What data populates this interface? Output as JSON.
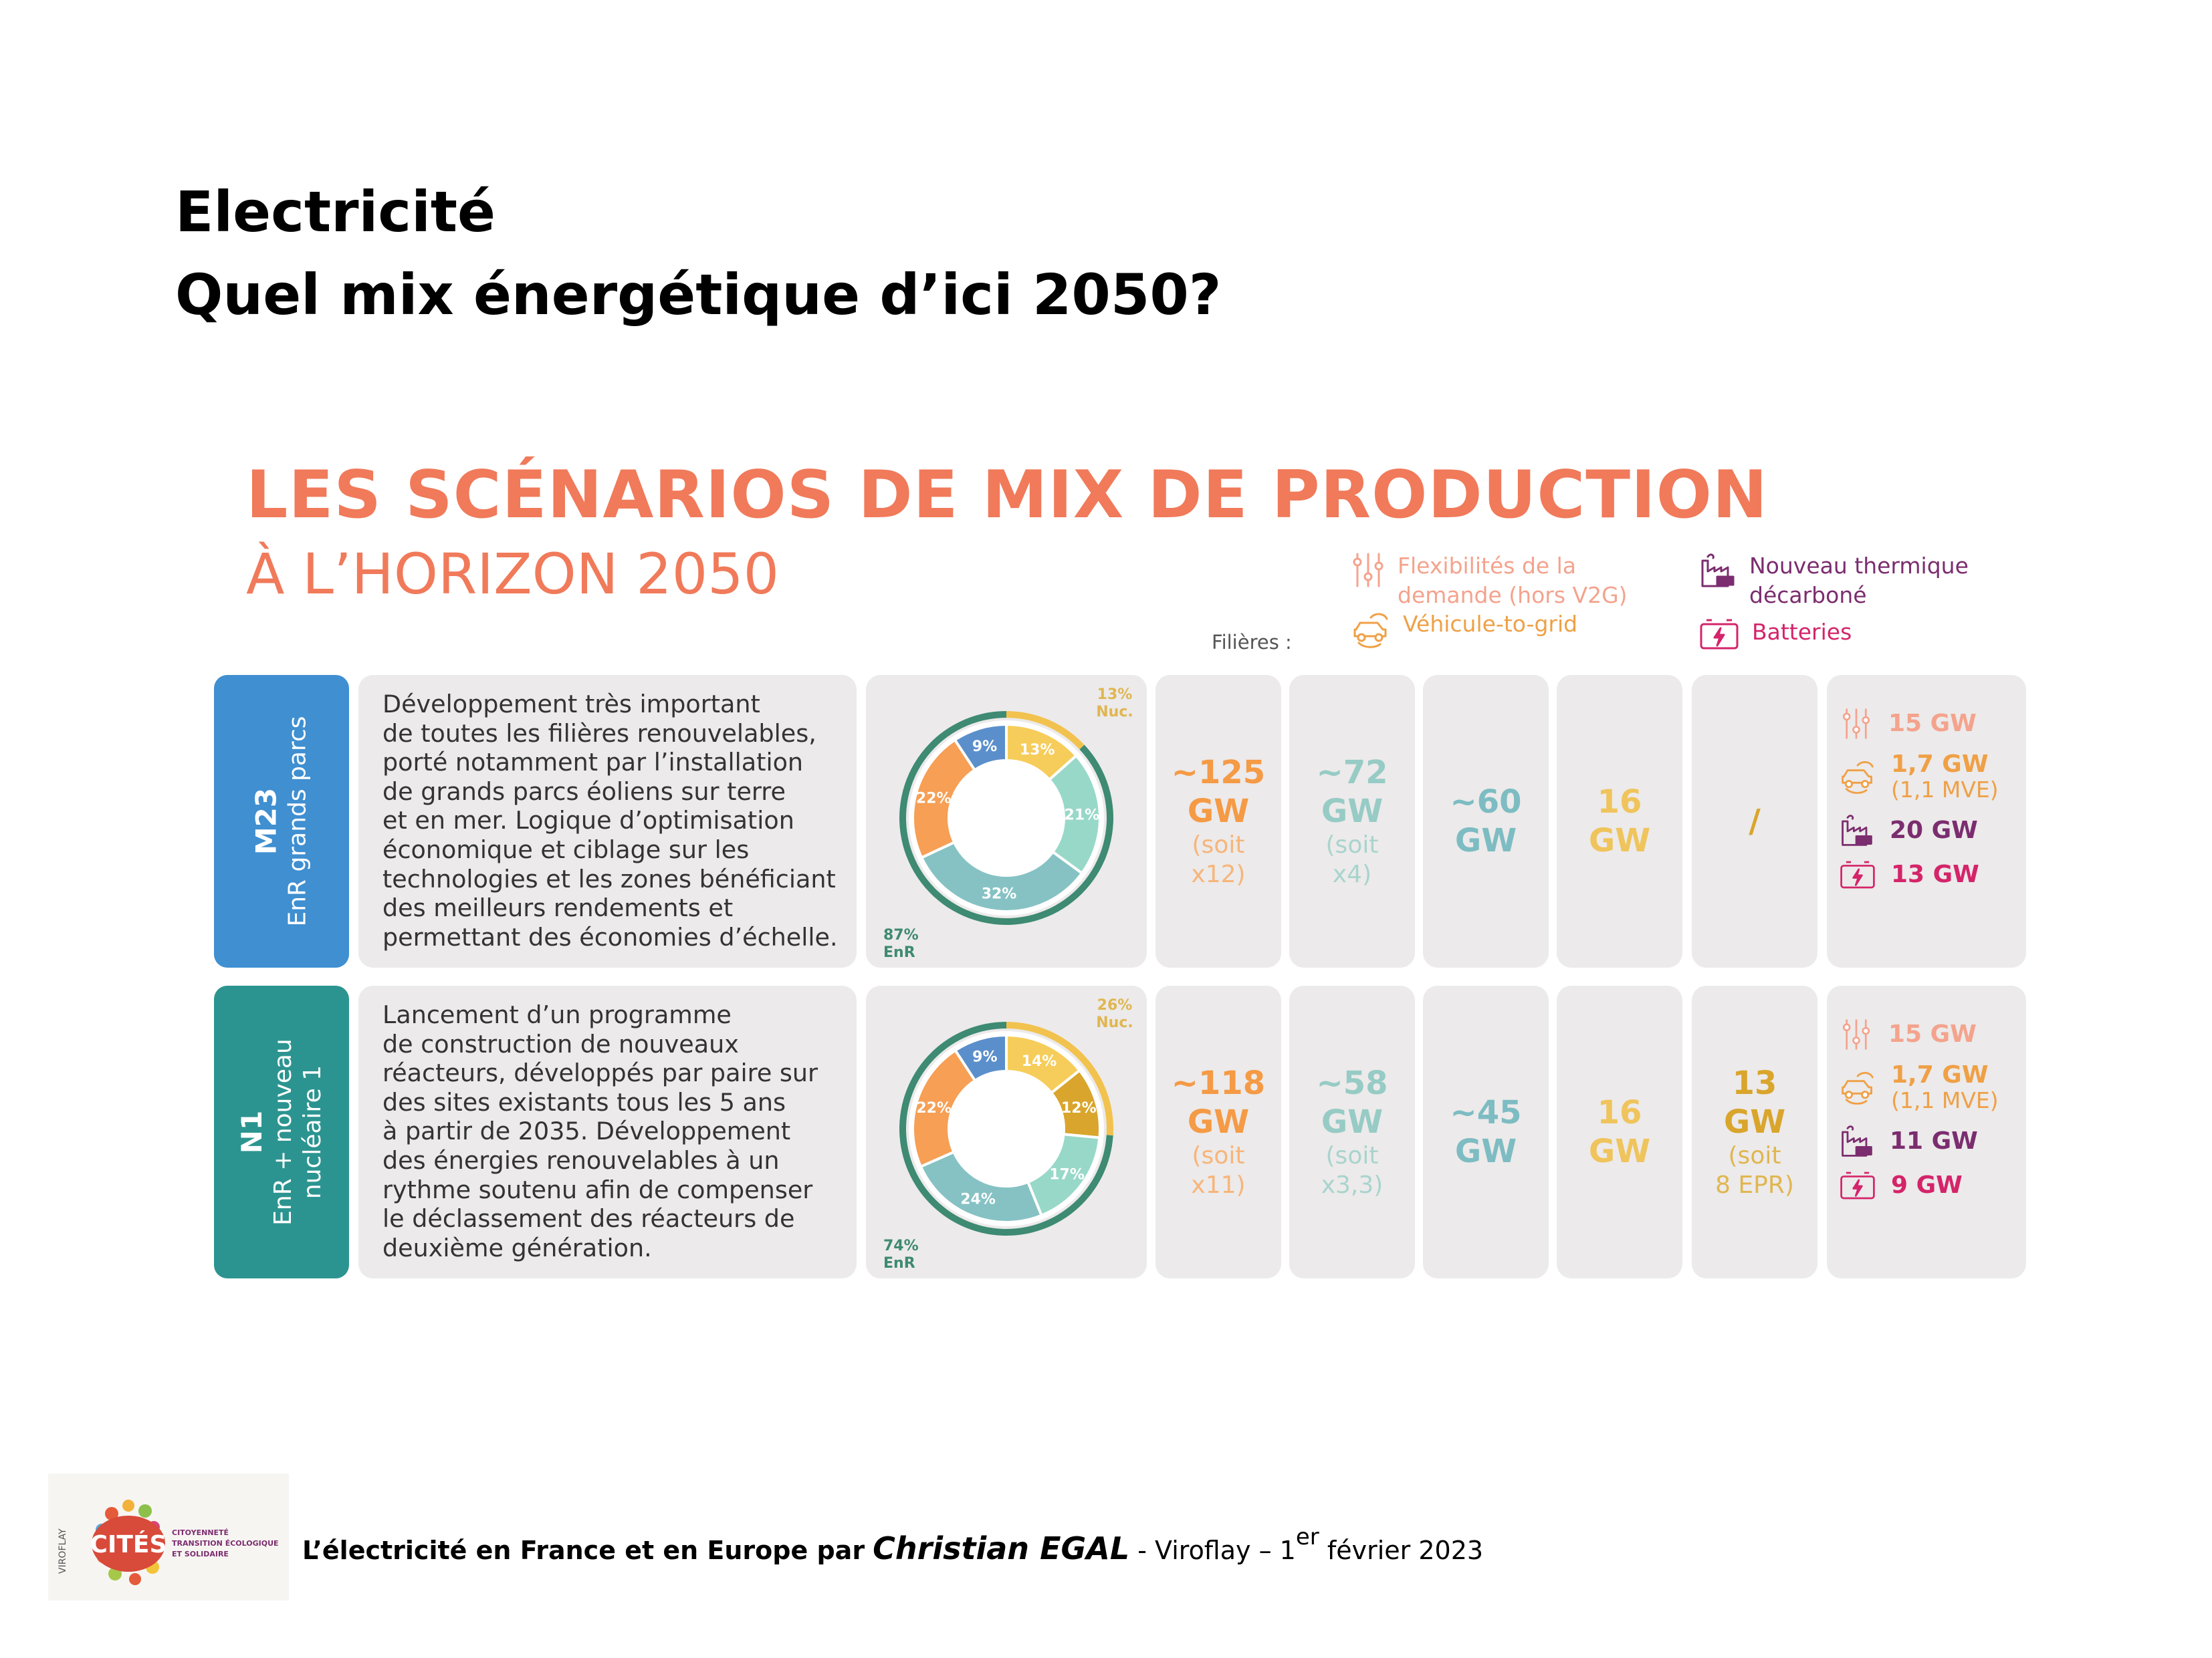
{
  "slide": {
    "title_line1": "Electricité",
    "title_line2": "Quel mix énergétique d’ici 2050?"
  },
  "infographic": {
    "heading_line1": "LES SCÉNARIOS DE MIX DE PRODUCTION",
    "heading_line2": "À L’HORIZON 2050",
    "filieres_label": "Filières :",
    "legend": {
      "flexibility": [
        "Flexibilités de la",
        "demande (hors V2G)"
      ],
      "v2g": "Véhicule-to-grid",
      "thermal": [
        "Nouveau thermique",
        "décarboné"
      ],
      "batteries": "Batteries",
      "icons": {
        "flexibility": "sliders-icon",
        "v2g": "car-plug-icon",
        "thermal": "factory-icon",
        "batteries": "battery-icon"
      }
    },
    "scenarios": [
      {
        "code": "M23",
        "subtitle_lines": [
          "EnR grands parcs"
        ],
        "description": [
          "Développement très important",
          "de toutes les filières renouvelables,",
          "porté notamment par l’installation",
          "de grands parcs éoliens sur terre",
          "et en mer. Logique d’optimisation",
          "économique et ciblage sur les",
          "technologies et les zones bénéficiant",
          "des meilleurs rendements et",
          "permettant des économies d’échelle."
        ],
        "donut": {
          "nuc_label": [
            "13%",
            "Nuc."
          ],
          "enr_label": [
            "87%",
            "EnR"
          ],
          "nuc_share": 0.13,
          "segments": [
            {
              "label": "13%",
              "value": 13,
              "color": "#f6cd5a"
            },
            {
              "label": "21%",
              "value": 21,
              "color": "#98d8c8"
            },
            {
              "label": "32%",
              "value": 32,
              "color": "#86c2c4"
            },
            {
              "label": "22%",
              "value": 22,
              "color": "#f69f55"
            },
            {
              "label": "9%",
              "value": 9,
              "color": "#5b8fcb"
            }
          ]
        },
        "pv": {
          "main": [
            "~125",
            "GW"
          ],
          "sub": [
            "(soit",
            "x12)"
          ]
        },
        "wind_onshore": {
          "main": [
            "~72",
            "GW"
          ],
          "sub": [
            "(soit",
            "x4)"
          ]
        },
        "wind_offshore": {
          "main": [
            "~60",
            "GW"
          ],
          "sub": []
        },
        "hydro": {
          "main": [
            "16",
            "GW"
          ],
          "sub": []
        },
        "nuclear": {
          "main": [
            "/"
          ],
          "sub": []
        },
        "flex": {
          "flexibility": "15 GW",
          "v2g": "1,7 GW",
          "v2g_sub": "(1,1 MVE)",
          "thermal": "20 GW",
          "batteries": "13 GW"
        }
      },
      {
        "code": "N1",
        "subtitle_lines": [
          "EnR + nouveau",
          "nucléaire 1"
        ],
        "description": [
          "Lancement d’un programme",
          "de construction de nouveaux",
          "réacteurs, développés par paire sur",
          "des sites existants tous les 5 ans",
          "à partir de 2035. Développement",
          "des énergies renouvelables à un",
          "rythme soutenu afin de compenser",
          "le déclassement des réacteurs de",
          "deuxième génération."
        ],
        "donut": {
          "nuc_label": [
            "26%",
            "Nuc."
          ],
          "enr_label": [
            "74%",
            "EnR"
          ],
          "nuc_share": 0.26,
          "segments": [
            {
              "label": "14%",
              "value": 14,
              "color": "#f6cd5a"
            },
            {
              "label": "12%",
              "value": 12,
              "color": "#d9a52c"
            },
            {
              "label": "17%",
              "value": 17,
              "color": "#98d8c8"
            },
            {
              "label": "24%",
              "value": 24,
              "color": "#86c2c4"
            },
            {
              "label": "22%",
              "value": 22,
              "color": "#f69f55"
            },
            {
              "label": "9%",
              "value": 9,
              "color": "#5b8fcb"
            }
          ]
        },
        "pv": {
          "main": [
            "~118",
            "GW"
          ],
          "sub": [
            "(soit",
            "x11)"
          ]
        },
        "wind_onshore": {
          "main": [
            "~58",
            "GW"
          ],
          "sub": [
            "(soit",
            "x3,3)"
          ]
        },
        "wind_offshore": {
          "main": [
            "~45",
            "GW"
          ],
          "sub": []
        },
        "hydro": {
          "main": [
            "16",
            "GW"
          ],
          "sub": []
        },
        "nuclear": {
          "main": [
            "13",
            "GW"
          ],
          "sub": [
            "(soit",
            "8 EPR)"
          ]
        },
        "flex": {
          "flexibility": "15 GW",
          "v2g": "1,7 GW",
          "v2g_sub": "(1,1 MVE)",
          "thermal": "11 GW",
          "batteries": "9 GW"
        }
      }
    ],
    "colors": {
      "heading": "#f07a5a",
      "m23_label": "#3f8fd1",
      "n1_label": "#2c9490",
      "donut_ring": "#3e8a72"
    }
  },
  "footer": {
    "logo_text": "CITÉS",
    "logo_side": "VIROFLAY",
    "logo_tagline": [
      "CITOYENNETÉ",
      "TRANSITION ÉCOLOGIQUE",
      "ET SOLIDAIRE"
    ],
    "text_bold": "L’électricité en France et en Europe par",
    "author": "Christian EGAL",
    "text_rest": "- Viroflay – 1",
    "superscript": "er",
    "date_rest": "février 2023"
  }
}
